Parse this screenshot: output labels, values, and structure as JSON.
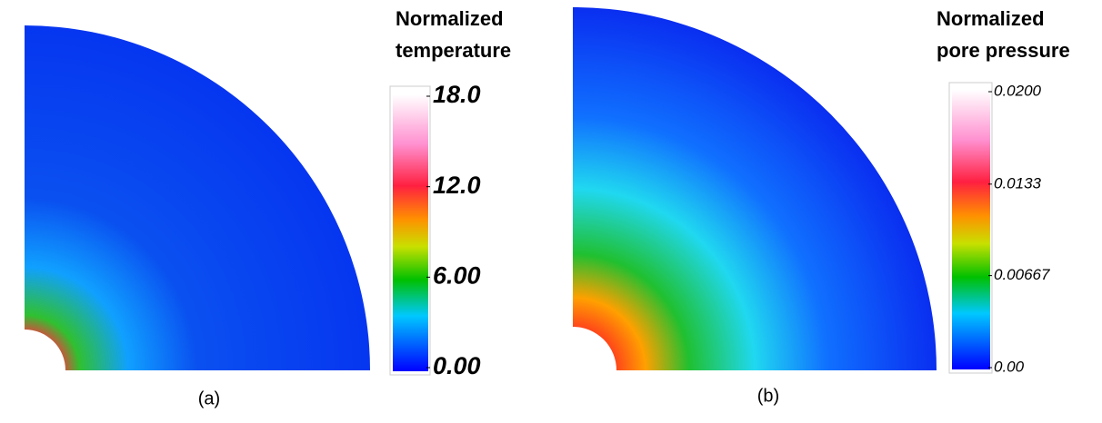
{
  "panels": [
    {
      "caption": "(a)",
      "colorbar_title": [
        "Normalized",
        "temperature"
      ],
      "clim": [
        0,
        18
      ],
      "ticks": [
        {
          "value": 18,
          "label": "18.0"
        },
        {
          "value": 12,
          "label": "12.0"
        },
        {
          "value": 6,
          "label": "6.00"
        },
        {
          "value": 0,
          "label": "0.00"
        }
      ]
    },
    {
      "caption": "(b)",
      "colorbar_title": [
        "Normalized",
        "pore pressure"
      ],
      "clim": [
        0,
        0.02
      ],
      "ticks": [
        {
          "value": 0.02,
          "label": "0.0200"
        },
        0.0133,
        0.00667,
        {
          "value": 0,
          "label": "0.00"
        }
      ]
    }
  ]
}
